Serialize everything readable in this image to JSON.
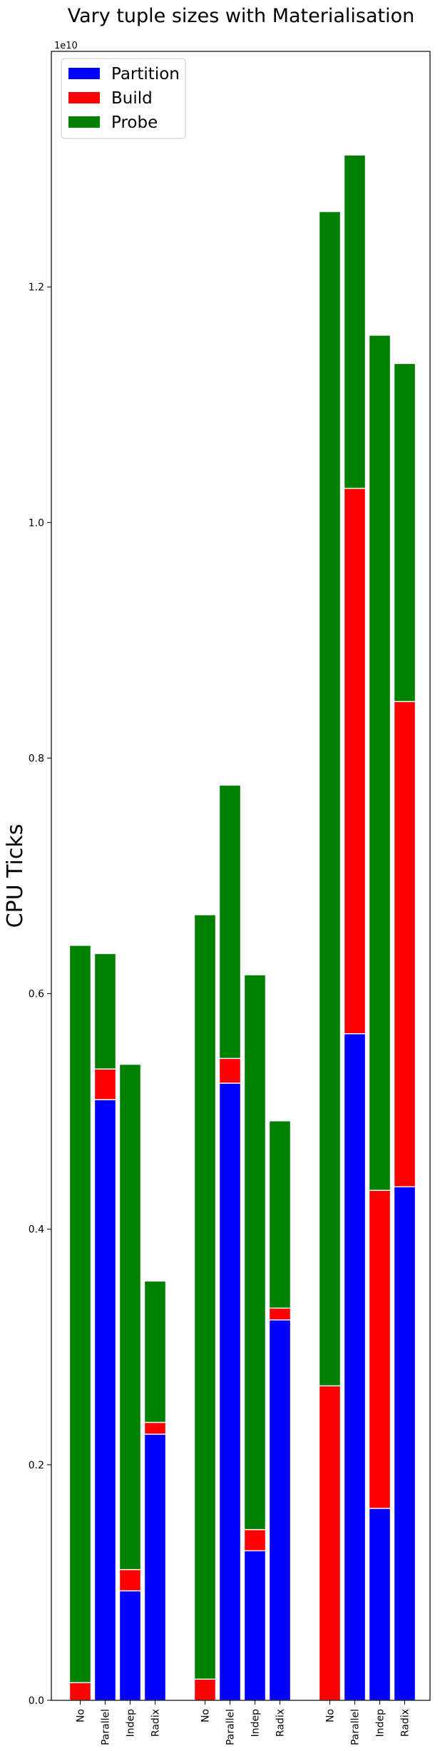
{
  "chart_data": {
    "type": "bar",
    "stacked": true,
    "title": "Vary tuple sizes with Materialisation",
    "ylabel": "CPU Ticks",
    "xlabel": "",
    "y_offset_text": "1e10",
    "y_multiplier": 10000000000,
    "ylim": [
      0,
      1.4
    ],
    "yticks": [
      0.0,
      0.2,
      0.4,
      0.6,
      0.8,
      1.0,
      1.2
    ],
    "ytick_labels": [
      "0.0",
      "0.2",
      "0.4",
      "0.6",
      "0.8",
      "1.0",
      "1.2"
    ],
    "grid": false,
    "legend_position": "top-left",
    "categories": [
      "No",
      "Parallel",
      "Indep",
      "Radix",
      "No",
      "Parallel",
      "Indep",
      "Radix",
      "No",
      "Parallel",
      "Indep",
      "Radix"
    ],
    "groups": 3,
    "series": [
      {
        "name": "Partition",
        "color": "#0000ff",
        "values": [
          0.0,
          0.51,
          0.093,
          0.226,
          0.0,
          0.524,
          0.127,
          0.323,
          0.0,
          0.566,
          0.163,
          0.436
        ]
      },
      {
        "name": "Build",
        "color": "#ff0000",
        "values": [
          0.015,
          0.026,
          0.018,
          0.01,
          0.018,
          0.021,
          0.018,
          0.01,
          0.267,
          0.463,
          0.27,
          0.412
        ]
      },
      {
        "name": "Probe",
        "color": "#008000",
        "values": [
          0.626,
          0.098,
          0.429,
          0.12,
          0.649,
          0.232,
          0.471,
          0.159,
          0.997,
          0.283,
          0.726,
          0.287
        ]
      }
    ]
  }
}
